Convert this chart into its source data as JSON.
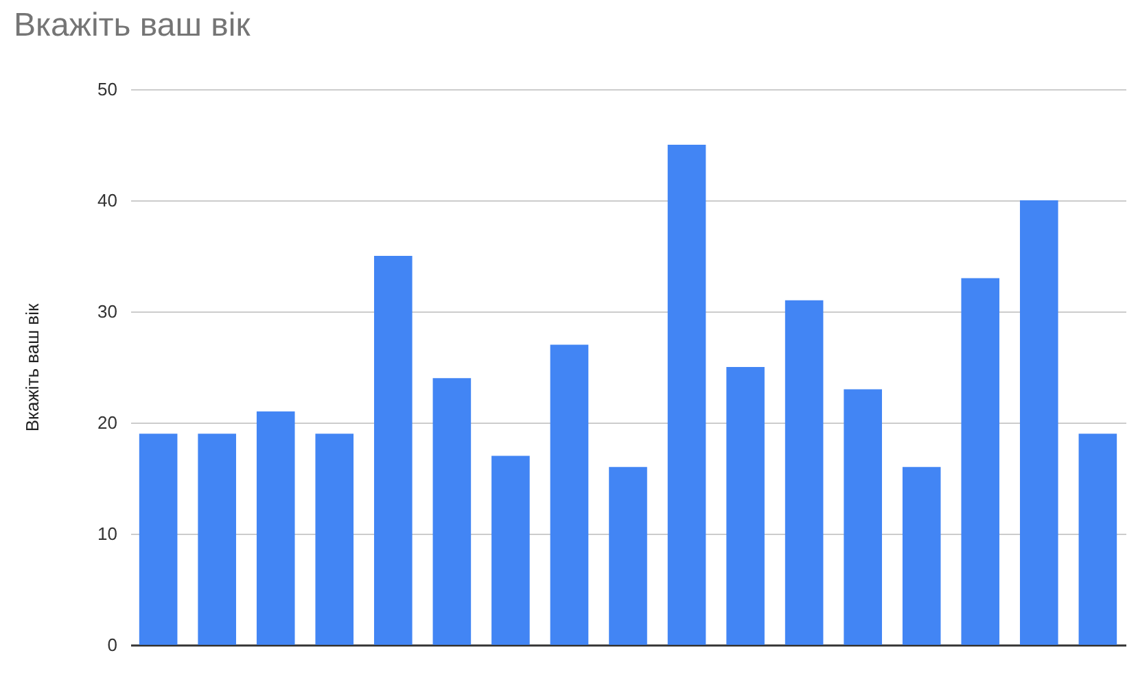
{
  "chart_data": {
    "type": "bar",
    "title": "Вкажіть ваш вік",
    "ylabel": "Вкажіть ваш вік",
    "categories": [
      null,
      null,
      null,
      null,
      null,
      null,
      null,
      null,
      null,
      null,
      null,
      null,
      null,
      null,
      null,
      null,
      null
    ],
    "values": [
      19,
      19,
      21,
      19,
      35,
      24,
      17,
      27,
      16,
      45,
      25,
      31,
      23,
      16,
      33,
      40,
      19
    ],
    "color": "#4285f4",
    "ylim": [
      0,
      50
    ],
    "yticks": [
      0,
      10,
      20,
      30,
      40,
      50
    ],
    "grid": "y"
  }
}
